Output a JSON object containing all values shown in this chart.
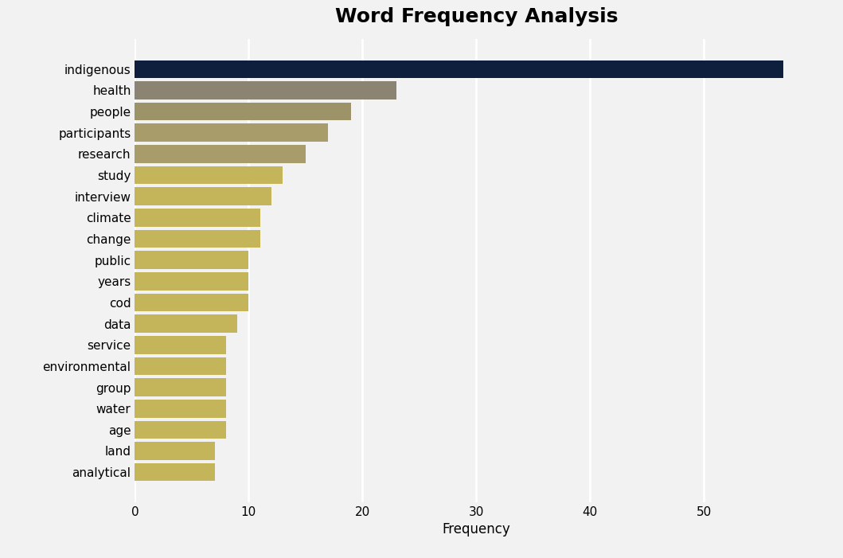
{
  "title": "Word Frequency Analysis",
  "title_fontsize": 18,
  "xlabel": "Frequency",
  "categories": [
    "indigenous",
    "health",
    "people",
    "participants",
    "research",
    "study",
    "interview",
    "climate",
    "change",
    "public",
    "years",
    "cod",
    "data",
    "service",
    "environmental",
    "group",
    "water",
    "age",
    "land",
    "analytical"
  ],
  "values": [
    57,
    23,
    19,
    17,
    15,
    13,
    12,
    11,
    11,
    10,
    10,
    10,
    9,
    8,
    8,
    8,
    8,
    8,
    7,
    7
  ],
  "bar_colors": [
    "#0d1f3c",
    "#8b8472",
    "#9c9468",
    "#a89c6a",
    "#a89c6a",
    "#c4b45a",
    "#c4b45a",
    "#c4b45a",
    "#c4b45a",
    "#c4b45a",
    "#c4b45a",
    "#c4b45a",
    "#c4b45a",
    "#c4b45a",
    "#c4b45a",
    "#c4b45a",
    "#c4b45a",
    "#c4b45a",
    "#c4b45a",
    "#c4b45a"
  ],
  "xlim": [
    0,
    60
  ],
  "xticks": [
    0,
    10,
    20,
    30,
    40,
    50
  ],
  "background_color": "#f2f2f2",
  "grid_color": "#ffffff",
  "bar_height": 0.85
}
